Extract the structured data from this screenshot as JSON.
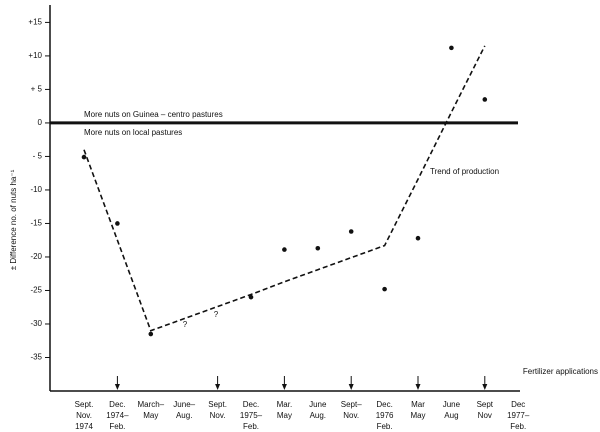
{
  "chart_data": {
    "type": "scatter",
    "y_label": "± Difference no. of nuts ha⁻¹",
    "categories": [
      [
        "Sept.",
        "Nov.",
        "1974"
      ],
      [
        "Dec.",
        "1974–",
        "Feb."
      ],
      [
        "March–",
        "May"
      ],
      [
        "June–",
        "Aug."
      ],
      [
        "Sept.",
        "Nov."
      ],
      [
        "Dec.",
        "1975–",
        "Feb."
      ],
      [
        "Mar.",
        "May"
      ],
      [
        "June",
        "Aug."
      ],
      [
        "Sept–",
        "Nov."
      ],
      [
        "Dec.",
        "1976",
        "Feb."
      ],
      [
        "Mar",
        "May"
      ],
      [
        "June",
        "Aug"
      ],
      [
        "Sept",
        "Nov"
      ],
      [
        "Dec",
        "1977–",
        "Feb."
      ]
    ],
    "series": [
      {
        "values": [
          -5.1,
          -15,
          -31.5,
          null,
          null,
          -26,
          -18.9,
          -18.7,
          -16.2,
          -24.8,
          -17.2,
          11.2,
          3.5,
          null
        ],
        "color": "#111111"
      },
      {
        "name": "Trend of production",
        "values": [
          -4,
          -17.5,
          -31,
          -29.2,
          -27.4,
          -25.6,
          -23.7,
          -21.9,
          -20.1,
          -18.3,
          -8.4,
          1.6,
          11.5,
          null
        ],
        "color": "#111111",
        "dashed": true
      }
    ],
    "annotations": [
      "?",
      "?",
      "More nuts on Guinea – centro pastures",
      "More nuts on local pastures",
      "Fertilizer applications"
    ],
    "ylim": [
      -40,
      17
    ],
    "yticks": [
      {
        "value": 15,
        "label": "+15"
      },
      {
        "value": 10,
        "label": "+10"
      },
      {
        "value": 5,
        "label": "+ 5"
      },
      0,
      {
        "value": -5,
        "label": "- 5"
      },
      -10,
      -15,
      -20,
      -25,
      -30,
      -35
    ],
    "reference_line": 0
  }
}
